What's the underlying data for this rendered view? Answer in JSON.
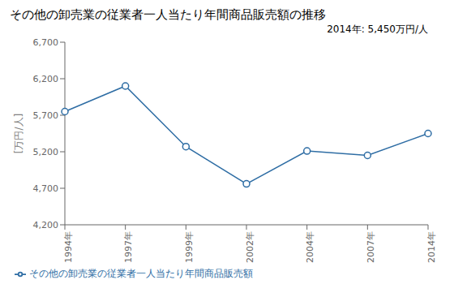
{
  "chart_data": {
    "type": "line",
    "title": "その他の卸売業の従業者一人当たり年間商品販売額の推移",
    "ylabel": "[万円/人]",
    "annotation": "2014年: 5,450万円/人",
    "categories": [
      "1994年",
      "1997年",
      "1999年",
      "2002年",
      "2004年",
      "2007年",
      "2014年"
    ],
    "series": [
      {
        "name": "その他の卸売業の従業者一人当たり年間商品販売額",
        "color": "#2E6DA4",
        "marker": "circle",
        "values": [
          5750,
          6100,
          5270,
          4760,
          5210,
          5150,
          5450
        ]
      }
    ],
    "ylim": [
      4200,
      6700
    ],
    "yticks": [
      {
        "value": 4200,
        "label": "4,200"
      },
      {
        "value": 4700,
        "label": "4,700"
      },
      {
        "value": 5200,
        "label": "5,200"
      },
      {
        "value": 5700,
        "label": "5,700"
      },
      {
        "value": 6200,
        "label": "6,200"
      },
      {
        "value": 6700,
        "label": "6,700"
      }
    ],
    "grid": false,
    "legend": "lower left"
  }
}
